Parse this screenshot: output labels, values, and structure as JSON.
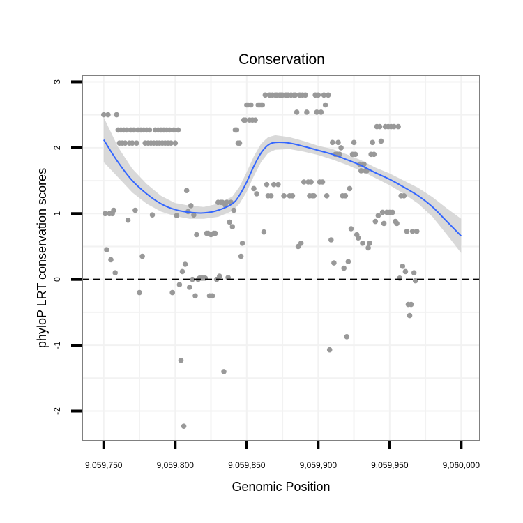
{
  "chart_data": {
    "type": "scatter",
    "title": "Conservation",
    "xlabel": "Genomic Position",
    "ylabel": "phyloP LRT conservation scores",
    "xlim": [
      9059735,
      9060013
    ],
    "ylim": [
      -2.45,
      3.1
    ],
    "x_ticks": [
      9059750,
      9059800,
      9059850,
      9059900,
      9059950,
      9060000
    ],
    "x_tick_labels": [
      "9,059,750",
      "9,059,800",
      "9,059,850",
      "9,059,900",
      "9,059,950",
      "9,060,000"
    ],
    "y_ticks": [
      -2,
      -1,
      0,
      1,
      2,
      3
    ],
    "y_tick_labels": [
      "-2",
      "-1",
      "0",
      "1",
      "2",
      "3"
    ],
    "reference_line": {
      "y": 0,
      "style": "dashed"
    },
    "colors": {
      "points": "#999999",
      "smooth_line": "#3366ff",
      "confidence_band": "#cccccc",
      "panel_border": "#808080",
      "grid": "#f2f2f2"
    },
    "points": [
      [
        9059750,
        2.5
      ],
      [
        9059751,
        1.0
      ],
      [
        9059752,
        0.45
      ],
      [
        9059753,
        2.5
      ],
      [
        9059754,
        1.0
      ],
      [
        9059755,
        0.3
      ],
      [
        9059756,
        1.0
      ],
      [
        9059757,
        1.05
      ],
      [
        9059758,
        0.1
      ],
      [
        9059759,
        2.5
      ],
      [
        9059760,
        2.27
      ],
      [
        9059761,
        2.07
      ],
      [
        9059762,
        2.27
      ],
      [
        9059763,
        2.07
      ],
      [
        9059764,
        2.27
      ],
      [
        9059765,
        2.07
      ],
      [
        9059766,
        2.27
      ],
      [
        9059767,
        0.9
      ],
      [
        9059768,
        2.07
      ],
      [
        9059769,
        2.27
      ],
      [
        9059770,
        2.07
      ],
      [
        9059771,
        2.27
      ],
      [
        9059772,
        1.05
      ],
      [
        9059773,
        2.07
      ],
      [
        9059774,
        2.27
      ],
      [
        9059775,
        -0.2
      ],
      [
        9059776,
        2.27
      ],
      [
        9059777,
        0.35
      ],
      [
        9059778,
        2.27
      ],
      [
        9059779,
        2.07
      ],
      [
        9059780,
        2.27
      ],
      [
        9059781,
        2.07
      ],
      [
        9059782,
        2.27
      ],
      [
        9059783,
        2.07
      ],
      [
        9059784,
        0.98
      ],
      [
        9059785,
        2.07
      ],
      [
        9059786,
        2.27
      ],
      [
        9059787,
        2.07
      ],
      [
        9059788,
        2.27
      ],
      [
        9059789,
        2.07
      ],
      [
        9059790,
        2.27
      ],
      [
        9059791,
        2.07
      ],
      [
        9059792,
        2.27
      ],
      [
        9059793,
        2.07
      ],
      [
        9059794,
        2.27
      ],
      [
        9059795,
        2.07
      ],
      [
        9059796,
        2.27
      ],
      [
        9059797,
        2.07
      ],
      [
        9059798,
        -0.2
      ],
      [
        9059799,
        2.27
      ],
      [
        9059800,
        2.07
      ],
      [
        9059801,
        0.97
      ],
      [
        9059802,
        2.27
      ],
      [
        9059803,
        -0.08
      ],
      [
        9059804,
        -1.23
      ],
      [
        9059805,
        0.12
      ],
      [
        9059806,
        -2.23
      ],
      [
        9059807,
        0.23
      ],
      [
        9059808,
        1.35
      ],
      [
        9059809,
        1.03
      ],
      [
        9059810,
        -0.12
      ],
      [
        9059811,
        1.12
      ],
      [
        9059812,
        0.0
      ],
      [
        9059813,
        0.98
      ],
      [
        9059814,
        -0.25
      ],
      [
        9059815,
        0.68
      ],
      [
        9059816,
        0.0
      ],
      [
        9059817,
        0.02
      ],
      [
        9059818,
        0.02
      ],
      [
        9059819,
        0.02
      ],
      [
        9059820,
        0.02
      ],
      [
        9059821,
        0.02
      ],
      [
        9059822,
        0.7
      ],
      [
        9059823,
        0.7
      ],
      [
        9059824,
        -0.25
      ],
      [
        9059825,
        0.68
      ],
      [
        9059826,
        -0.25
      ],
      [
        9059827,
        0.7
      ],
      [
        9059828,
        0.7
      ],
      [
        9059829,
        0.0
      ],
      [
        9059830,
        1.17
      ],
      [
        9059831,
        0.05
      ],
      [
        9059832,
        1.17
      ],
      [
        9059833,
        1.17
      ],
      [
        9059834,
        -1.4
      ],
      [
        9059835,
        1.13
      ],
      [
        9059836,
        1.17
      ],
      [
        9059837,
        0.03
      ],
      [
        9059838,
        0.87
      ],
      [
        9059839,
        1.17
      ],
      [
        9059840,
        0.8
      ],
      [
        9059841,
        1.05
      ],
      [
        9059842,
        2.27
      ],
      [
        9059843,
        2.27
      ],
      [
        9059844,
        2.07
      ],
      [
        9059845,
        2.07
      ],
      [
        9059846,
        0.35
      ],
      [
        9059847,
        0.55
      ],
      [
        9059848,
        2.42
      ],
      [
        9059849,
        2.42
      ],
      [
        9059850,
        2.65
      ],
      [
        9059851,
        2.65
      ],
      [
        9059852,
        2.42
      ],
      [
        9059853,
        2.65
      ],
      [
        9059854,
        2.42
      ],
      [
        9059855,
        1.38
      ],
      [
        9059856,
        2.42
      ],
      [
        9059857,
        1.3
      ],
      [
        9059858,
        2.65
      ],
      [
        9059859,
        2.65
      ],
      [
        9059860,
        2.65
      ],
      [
        9059861,
        2.65
      ],
      [
        9059862,
        0.72
      ],
      [
        9059863,
        2.8
      ],
      [
        9059864,
        1.44
      ],
      [
        9059865,
        1.27
      ],
      [
        9059866,
        2.8
      ],
      [
        9059867,
        1.27
      ],
      [
        9059868,
        2.8
      ],
      [
        9059869,
        1.44
      ],
      [
        9059870,
        2.8
      ],
      [
        9059871,
        2.8
      ],
      [
        9059872,
        1.44
      ],
      [
        9059873,
        2.8
      ],
      [
        9059874,
        2.8
      ],
      [
        9059875,
        2.8
      ],
      [
        9059876,
        1.27
      ],
      [
        9059877,
        2.8
      ],
      [
        9059878,
        2.8
      ],
      [
        9059879,
        2.8
      ],
      [
        9059880,
        1.27
      ],
      [
        9059881,
        2.8
      ],
      [
        9059882,
        1.27
      ],
      [
        9059883,
        2.8
      ],
      [
        9059884,
        2.8
      ],
      [
        9059885,
        2.54
      ],
      [
        9059886,
        0.5
      ],
      [
        9059887,
        2.8
      ],
      [
        9059888,
        0.55
      ],
      [
        9059889,
        2.8
      ],
      [
        9059890,
        1.48
      ],
      [
        9059891,
        2.8
      ],
      [
        9059892,
        2.54
      ],
      [
        9059893,
        1.48
      ],
      [
        9059894,
        1.27
      ],
      [
        9059895,
        1.48
      ],
      [
        9059896,
        1.27
      ],
      [
        9059897,
        1.27
      ],
      [
        9059898,
        2.8
      ],
      [
        9059899,
        2.54
      ],
      [
        9059900,
        2.8
      ],
      [
        9059901,
        1.48
      ],
      [
        9059902,
        2.54
      ],
      [
        9059903,
        1.48
      ],
      [
        9059904,
        2.8
      ],
      [
        9059905,
        2.65
      ],
      [
        9059906,
        1.27
      ],
      [
        9059907,
        2.8
      ],
      [
        9059908,
        -1.07
      ],
      [
        9059909,
        0.6
      ],
      [
        9059910,
        2.08
      ],
      [
        9059911,
        0.25
      ],
      [
        9059912,
        1.9
      ],
      [
        9059913,
        1.9
      ],
      [
        9059914,
        2.08
      ],
      [
        9059915,
        1.9
      ],
      [
        9059916,
        2.0
      ],
      [
        9059917,
        1.27
      ],
      [
        9059918,
        0.17
      ],
      [
        9059919,
        1.27
      ],
      [
        9059920,
        -0.87
      ],
      [
        9059921,
        0.27
      ],
      [
        9059922,
        1.38
      ],
      [
        9059923,
        0.77
      ],
      [
        9059924,
        1.9
      ],
      [
        9059925,
        2.08
      ],
      [
        9059926,
        1.9
      ],
      [
        9059927,
        0.68
      ],
      [
        9059928,
        0.63
      ],
      [
        9059929,
        1.75
      ],
      [
        9059930,
        1.65
      ],
      [
        9059931,
        0.55
      ],
      [
        9059932,
        1.75
      ],
      [
        9059933,
        1.65
      ],
      [
        9059934,
        1.65
      ],
      [
        9059935,
        0.48
      ],
      [
        9059936,
        0.55
      ],
      [
        9059937,
        1.9
      ],
      [
        9059938,
        2.08
      ],
      [
        9059939,
        1.9
      ],
      [
        9059940,
        0.88
      ],
      [
        9059941,
        2.32
      ],
      [
        9059942,
        0.97
      ],
      [
        9059943,
        2.32
      ],
      [
        9059944,
        2.1
      ],
      [
        9059945,
        1.02
      ],
      [
        9059946,
        0.85
      ],
      [
        9059947,
        2.32
      ],
      [
        9059948,
        1.02
      ],
      [
        9059949,
        2.32
      ],
      [
        9059950,
        1.02
      ],
      [
        9059951,
        2.32
      ],
      [
        9059952,
        1.02
      ],
      [
        9059953,
        2.32
      ],
      [
        9059954,
        0.88
      ],
      [
        9059955,
        0.85
      ],
      [
        9059956,
        2.32
      ],
      [
        9059957,
        0.02
      ],
      [
        9059958,
        1.27
      ],
      [
        9059959,
        0.2
      ],
      [
        9059960,
        1.27
      ],
      [
        9059961,
        0.12
      ],
      [
        9059962,
        0.73
      ],
      [
        9059963,
        -0.38
      ],
      [
        9059964,
        -0.55
      ],
      [
        9059965,
        -0.38
      ],
      [
        9059966,
        0.73
      ],
      [
        9059967,
        0.1
      ],
      [
        9059968,
        -0.02
      ],
      [
        9059969,
        0.73
      ]
    ],
    "smooth_line": {
      "x": [
        9059750,
        9059760,
        9059770,
        9059780,
        9059790,
        9059800,
        9059810,
        9059820,
        9059830,
        9059840,
        9059845,
        9059850,
        9059855,
        9059860,
        9059865,
        9059870,
        9059880,
        9059890,
        9059900,
        9059910,
        9059920,
        9059930,
        9059940,
        9059950,
        9059960,
        9059970,
        9059980,
        9059990,
        9060000
      ],
      "y": [
        2.12,
        1.78,
        1.5,
        1.3,
        1.15,
        1.06,
        1.02,
        1.01,
        1.05,
        1.15,
        1.28,
        1.48,
        1.72,
        1.92,
        2.04,
        2.08,
        2.07,
        2.02,
        1.96,
        1.9,
        1.82,
        1.73,
        1.62,
        1.52,
        1.4,
        1.27,
        1.1,
        0.88,
        0.66
      ],
      "ymin": [
        1.78,
        1.55,
        1.32,
        1.15,
        1.03,
        0.96,
        0.92,
        0.92,
        0.95,
        1.04,
        1.15,
        1.33,
        1.57,
        1.78,
        1.92,
        1.97,
        1.98,
        1.94,
        1.89,
        1.82,
        1.74,
        1.65,
        1.54,
        1.43,
        1.3,
        1.15,
        0.95,
        0.68,
        0.4
      ],
      "ymax": [
        2.46,
        2.01,
        1.68,
        1.45,
        1.27,
        1.16,
        1.12,
        1.1,
        1.15,
        1.26,
        1.41,
        1.63,
        1.87,
        2.06,
        2.16,
        2.19,
        2.16,
        2.1,
        2.03,
        1.98,
        1.9,
        1.81,
        1.7,
        1.61,
        1.5,
        1.39,
        1.25,
        1.08,
        0.92
      ]
    }
  }
}
